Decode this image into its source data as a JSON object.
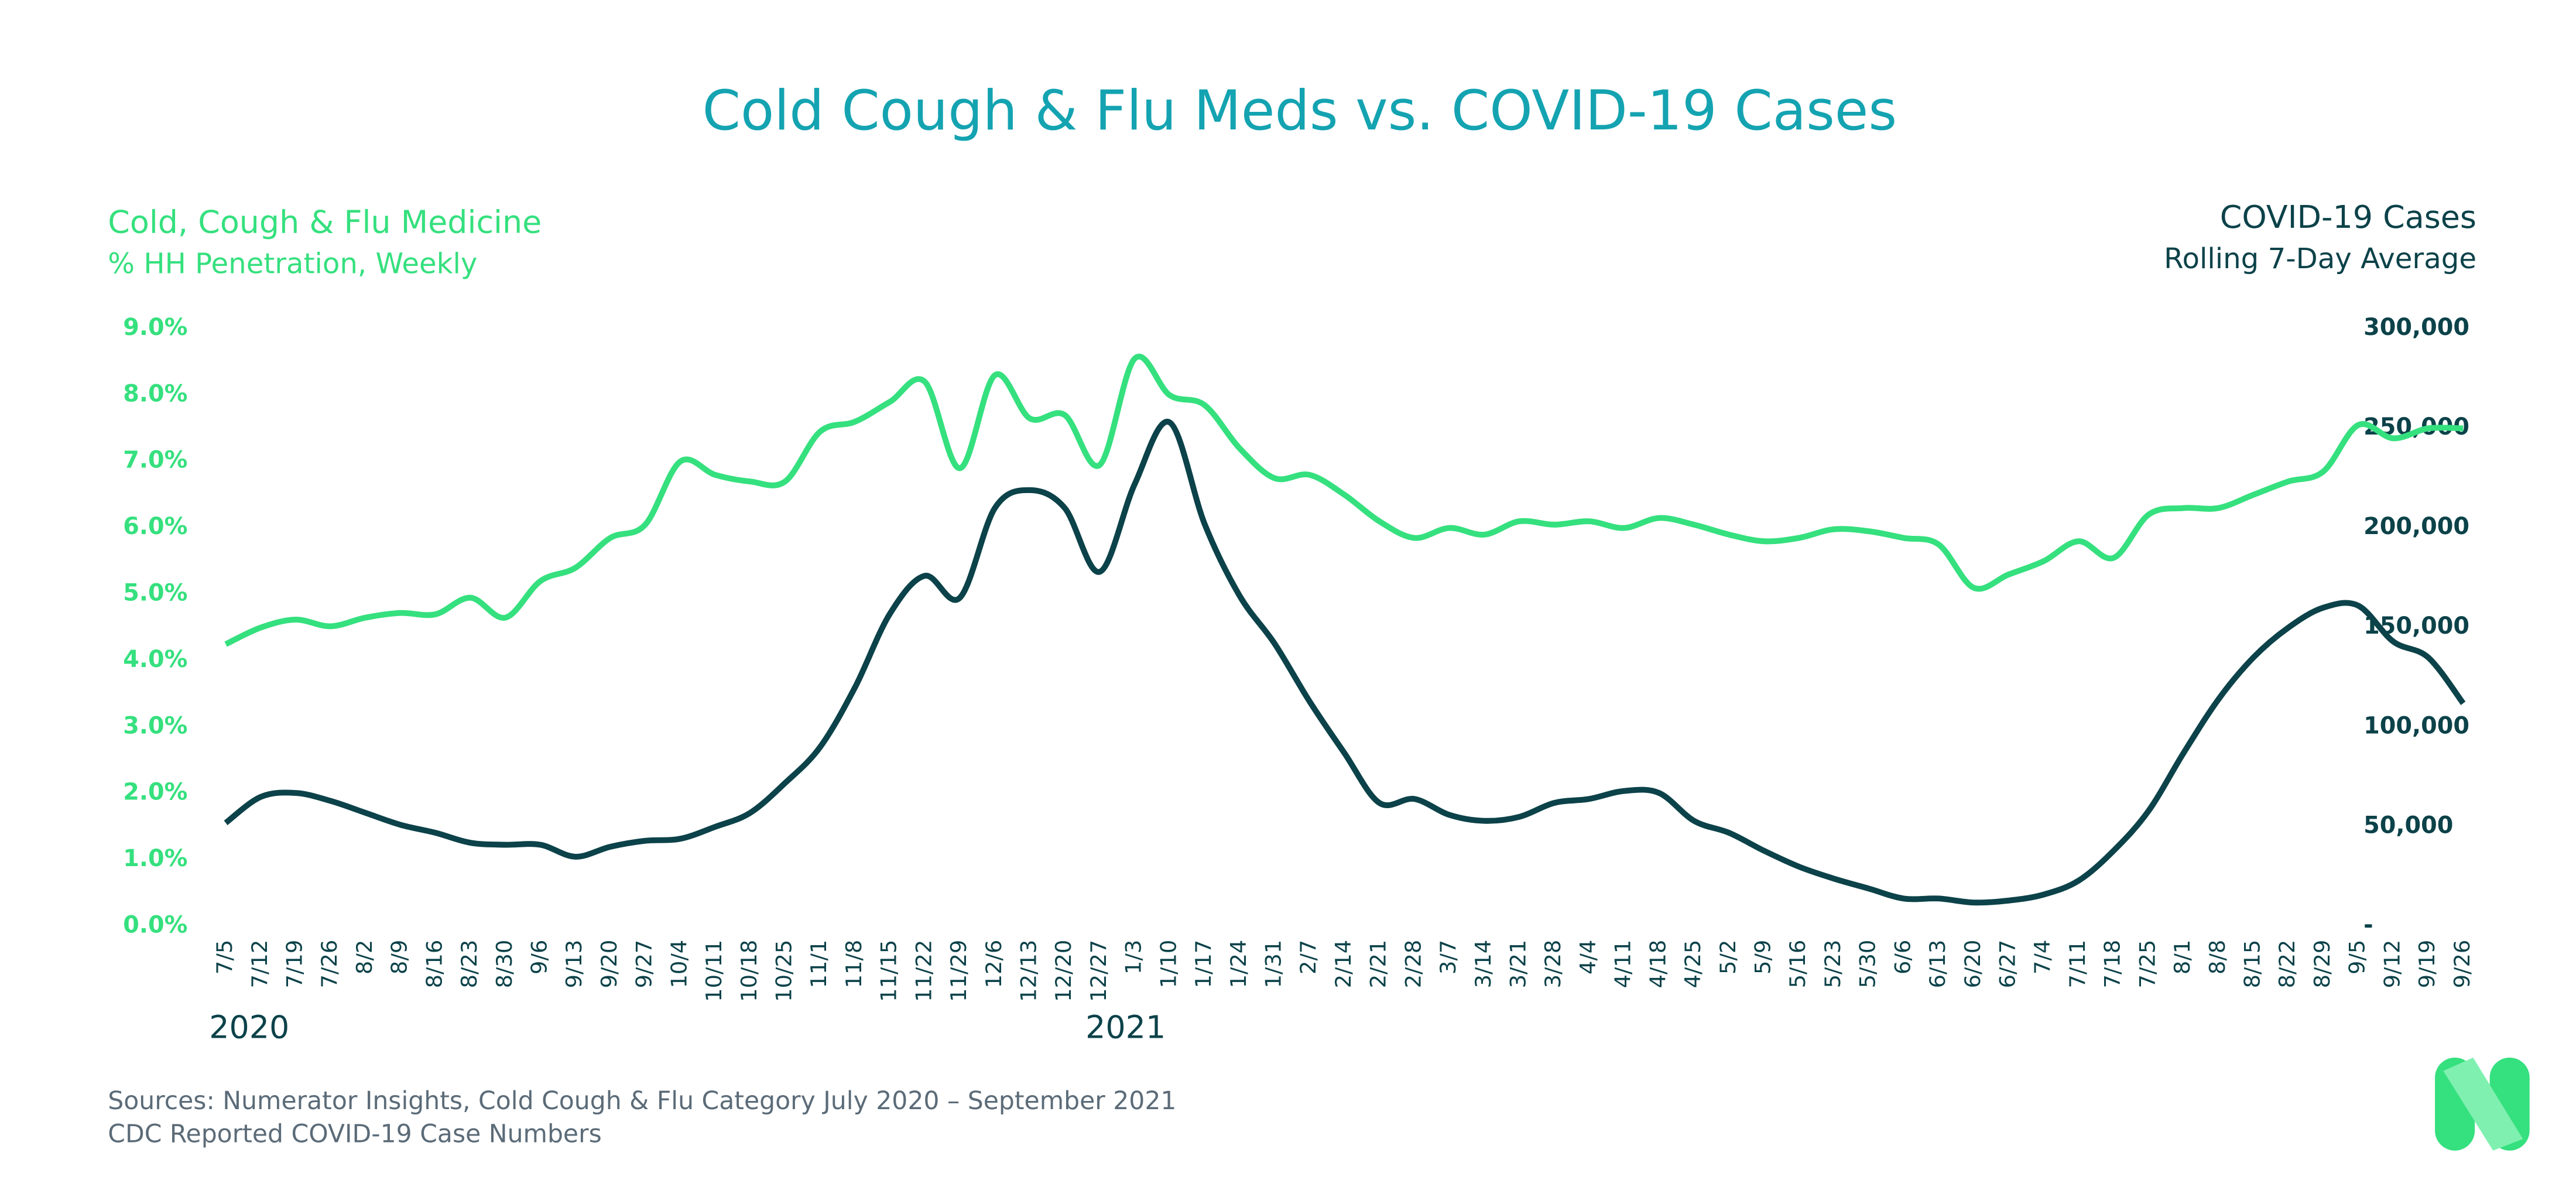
{
  "chart_data": {
    "type": "line",
    "title": "Cold Cough & Flu Meds vs. COVID-19 Cases",
    "y_axis_label": "% HH Penetration, Weekly",
    "y2_axis_label": "Rolling 7-Day Average",
    "year_labels": [
      "2020",
      "2021"
    ],
    "sources": [
      "Sources: Numerator Insights, Cold Cough & Flu Category July 2020 – September 2021",
      "CDC Reported COVID-19 Case Numbers"
    ],
    "categories": [
      "7/5",
      "7/12",
      "7/19",
      "7/26",
      "8/2",
      "8/9",
      "8/16",
      "8/23",
      "8/30",
      "9/6",
      "9/13",
      "9/20",
      "9/27",
      "10/4",
      "10/11",
      "10/18",
      "10/25",
      "11/1",
      "11/8",
      "11/15",
      "11/22",
      "11/29",
      "12/6",
      "12/13",
      "12/20",
      "12/27",
      "1/3",
      "1/10",
      "1/17",
      "1/24",
      "1/31",
      "2/7",
      "2/14",
      "2/21",
      "2/28",
      "3/7",
      "3/14",
      "3/21",
      "3/28",
      "4/4",
      "4/11",
      "4/18",
      "4/25",
      "5/2",
      "5/9",
      "5/16",
      "5/23",
      "5/30",
      "6/6",
      "6/13",
      "6/20",
      "6/27",
      "7/4",
      "7/11",
      "7/18",
      "7/25",
      "8/1",
      "8/8",
      "8/15",
      "8/22",
      "8/29",
      "9/5",
      "9/12",
      "9/19",
      "9/26"
    ],
    "series": [
      {
        "name": "Cold, Cough & Flu Medicine",
        "color": "#35e07e",
        "axis": "y",
        "values": [
          4.25,
          4.5,
          4.62,
          4.52,
          4.65,
          4.72,
          4.7,
          4.95,
          4.65,
          5.2,
          5.4,
          5.85,
          6.05,
          7.0,
          6.8,
          6.7,
          6.7,
          7.45,
          7.6,
          7.9,
          8.2,
          6.9,
          8.3,
          7.65,
          7.7,
          6.95,
          8.55,
          8.0,
          7.85,
          7.2,
          6.75,
          6.8,
          6.5,
          6.1,
          5.85,
          6.0,
          5.9,
          6.1,
          6.05,
          6.1,
          6.0,
          6.15,
          6.05,
          5.9,
          5.8,
          5.85,
          5.98,
          5.95,
          5.85,
          5.75,
          5.1,
          5.3,
          5.5,
          5.8,
          5.55,
          6.2,
          6.3,
          6.3,
          6.5,
          6.7,
          6.85,
          7.55,
          7.35,
          7.5,
          7.5
        ]
      },
      {
        "name": "COVID-19 Cases",
        "color": "#0c4249",
        "axis": "y2",
        "values": [
          52000,
          65000,
          67000,
          63000,
          57000,
          51000,
          47000,
          42000,
          41000,
          41000,
          35000,
          40000,
          43000,
          44000,
          50000,
          57000,
          72000,
          90000,
          120000,
          157000,
          176000,
          165000,
          210000,
          219000,
          210000,
          178000,
          222000,
          253000,
          202000,
          166000,
          142000,
          113000,
          87000,
          62000,
          64000,
          56000,
          53000,
          55000,
          62000,
          64000,
          68000,
          67000,
          53000,
          47000,
          38000,
          30000,
          24000,
          19000,
          14000,
          14000,
          12000,
          13000,
          16000,
          23000,
          38000,
          58000,
          87000,
          114000,
          135000,
          150000,
          160000,
          161000,
          143000,
          135000,
          112000
        ]
      }
    ],
    "ylim": [
      0,
      9
    ],
    "yticks": [
      {
        "value": 0,
        "label": "0.0%"
      },
      {
        "value": 1,
        "label": "1.0%"
      },
      {
        "value": 2,
        "label": "2.0%"
      },
      {
        "value": 3,
        "label": "3.0%"
      },
      {
        "value": 4,
        "label": "4.0%"
      },
      {
        "value": 5,
        "label": "5.0%"
      },
      {
        "value": 6,
        "label": "6.0%"
      },
      {
        "value": 7,
        "label": "7.0%"
      },
      {
        "value": 8,
        "label": "8.0%"
      },
      {
        "value": 9,
        "label": "9.0%"
      }
    ],
    "y2lim": [
      0,
      300000
    ],
    "y2ticks": [
      {
        "value": 0,
        "label": "-"
      },
      {
        "value": 50000,
        "label": "50,000"
      },
      {
        "value": 100000,
        "label": "100,000"
      },
      {
        "value": 150000,
        "label": "150,000"
      },
      {
        "value": 200000,
        "label": "200,000"
      },
      {
        "value": 250000,
        "label": "250,000"
      },
      {
        "value": 300000,
        "label": "300,000"
      }
    ],
    "grid": false
  }
}
